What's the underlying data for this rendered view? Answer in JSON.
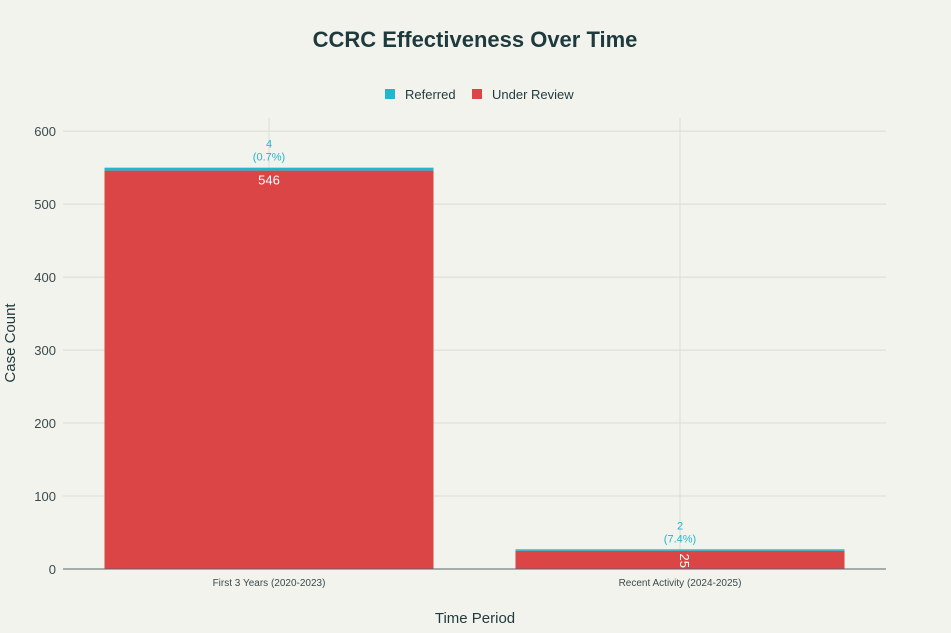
{
  "chart_data": {
    "type": "bar",
    "stacked": true,
    "title": "CCRC Effectiveness Over Time",
    "xlabel": "Time Period",
    "ylabel": "Case Count",
    "categories": [
      "First 3 Years (2020-2023)",
      "Recent Activity (2024-2025)"
    ],
    "series": [
      {
        "name": "Under Review",
        "color": "#db4545",
        "values": [
          546,
          25
        ],
        "labels": [
          "546",
          "25"
        ]
      },
      {
        "name": "Referred",
        "color": "#1fb8cd",
        "values": [
          4,
          2
        ],
        "labels": [
          [
            "4",
            "(0.7%)"
          ],
          [
            "2",
            "(7.4%)"
          ]
        ]
      }
    ],
    "legend": {
      "position": "top-center",
      "order": [
        "Referred",
        "Under Review"
      ]
    },
    "ylim": [
      0,
      620
    ],
    "yticks": [
      0,
      100,
      200,
      300,
      400,
      500,
      600
    ],
    "grid": true
  }
}
